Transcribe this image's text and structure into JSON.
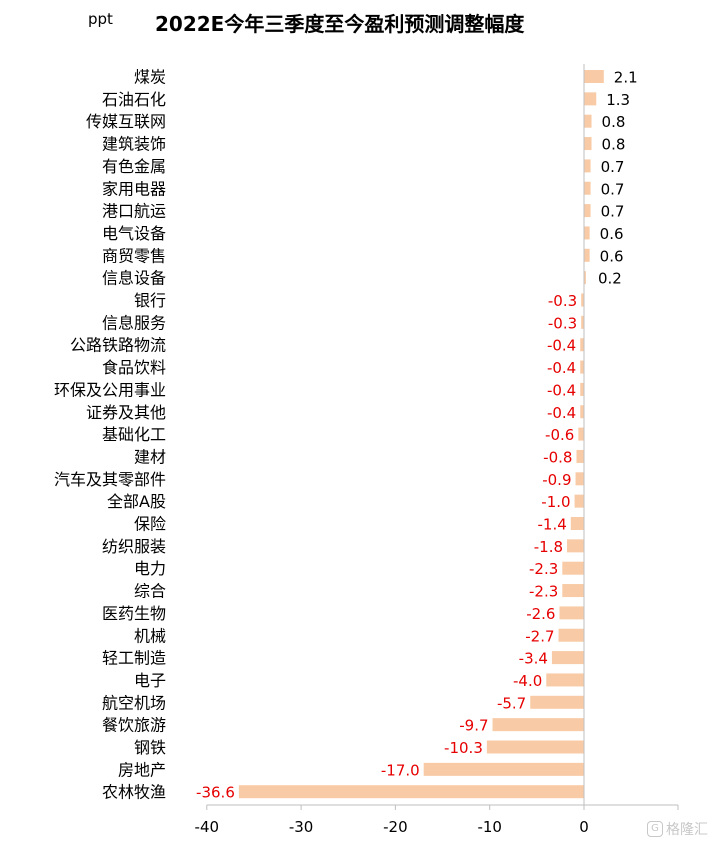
{
  "chart_data": {
    "type": "bar",
    "orientation": "horizontal",
    "title": "2022E今年三季度至今盈利预测调整幅度",
    "unit": "ppt",
    "categories": [
      "煤炭",
      "石油石化",
      "传媒互联网",
      "建筑装饰",
      "有色金属",
      "家用电器",
      "港口航运",
      "电气设备",
      "商贸零售",
      "信息设备",
      "银行",
      "信息服务",
      "公路铁路物流",
      "食品饮料",
      "环保及公用事业",
      "证券及其他",
      "基础化工",
      "建材",
      "汽车及其零部件",
      "全部A股",
      "保险",
      "纺织服装",
      "电力",
      "综合",
      "医药生物",
      "机械",
      "轻工制造",
      "电子",
      "航空机场",
      "餐饮旅游",
      "钢铁",
      "房地产",
      "农林牧渔"
    ],
    "values": [
      2.1,
      1.3,
      0.8,
      0.8,
      0.7,
      0.7,
      0.7,
      0.6,
      0.6,
      0.2,
      -0.3,
      -0.3,
      -0.4,
      -0.4,
      -0.4,
      -0.4,
      -0.6,
      -0.8,
      -0.9,
      -1.0,
      -1.4,
      -1.8,
      -2.3,
      -2.3,
      -2.6,
      -2.7,
      -3.4,
      -4.0,
      -5.7,
      -9.7,
      -10.3,
      -17.0,
      -36.6
    ],
    "value_labels": [
      "2.1",
      "1.3",
      "0.8",
      "0.8",
      "0.7",
      "0.7",
      "0.7",
      "0.6",
      "0.6",
      "0.2",
      "-0.3",
      "-0.3",
      "-0.4",
      "-0.4",
      "-0.4",
      "-0.4",
      "-0.6",
      "-0.8",
      "-0.9",
      "-1.0",
      "-1.4",
      "-1.8",
      "-2.3",
      "-2.3",
      "-2.6",
      "-2.7",
      "-3.4",
      "-4.0",
      "-5.7",
      "-9.7",
      "-10.3",
      "-17.0",
      "-36.6"
    ],
    "xlim": [
      -40,
      10
    ],
    "x_ticks": [
      "-40",
      "-30",
      "-20",
      "-10",
      "0"
    ],
    "x_tick_values": [
      -40,
      -30,
      -20,
      -10,
      0
    ],
    "grid": false,
    "legend": "none",
    "colors": {
      "bar": "#F8CBA6",
      "positive_label": "#000000",
      "negative_label": "#E60000",
      "axis": "#BFBFBF"
    }
  },
  "watermark": {
    "icon": "gelonghui-logo-icon",
    "text": "格隆汇"
  }
}
